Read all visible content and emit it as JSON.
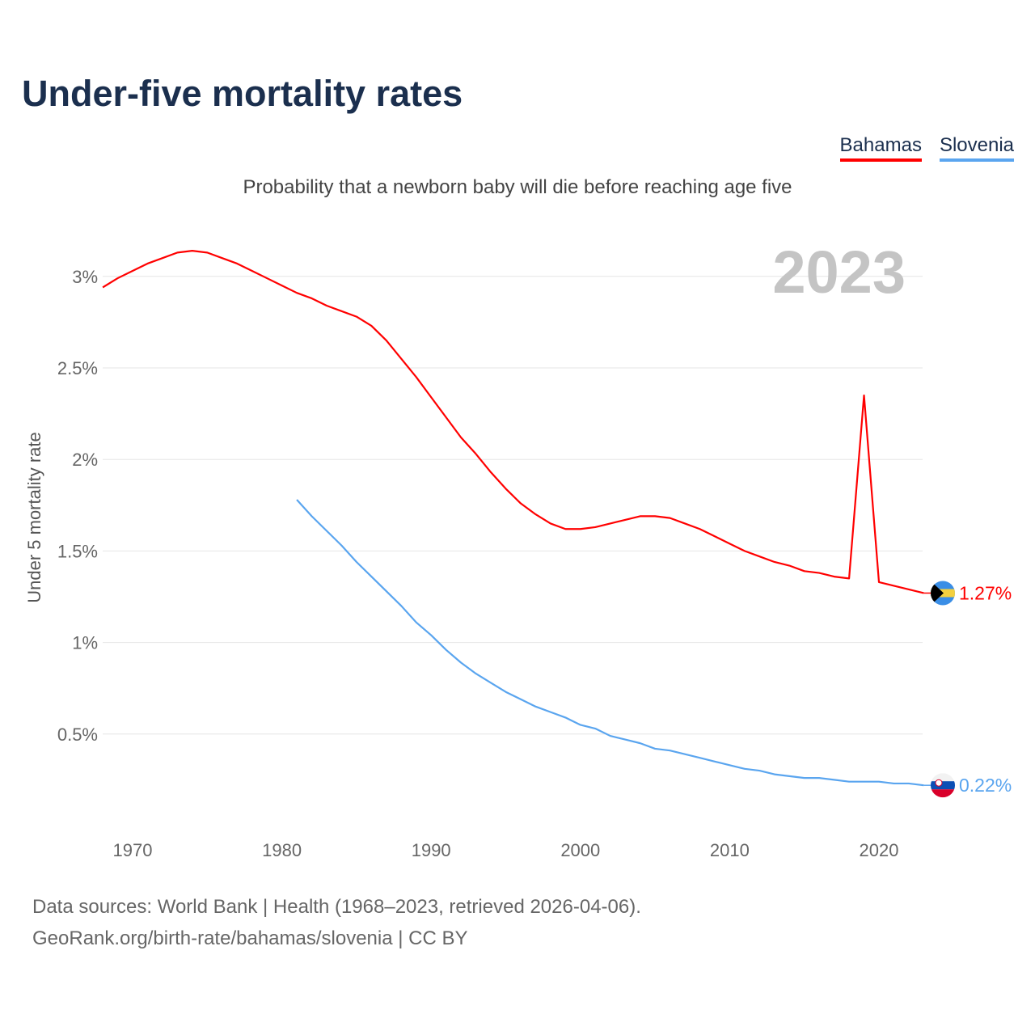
{
  "title": "Under-five mortality rates",
  "subtitle": "Probability that a newborn baby will die before reaching age five",
  "year_label": "2023",
  "sources": [
    "Data sources: World Bank | Health (1968–2023, retrieved 2026-04-06).",
    "GeoRank.org/birth-rate/bahamas/slovenia | CC BY"
  ],
  "chart_data": {
    "type": "line",
    "title": "Under-five mortality rates",
    "ylabel": "Under 5 mortality rate",
    "xlabel": "",
    "xlim": [
      1968,
      2023
    ],
    "ylim": [
      0,
      3.3
    ],
    "grid": true,
    "legend": "top-right",
    "xticks": [
      1970,
      1980,
      1990,
      2000,
      2010,
      2020
    ],
    "xtick_labels": [
      "1970",
      "1980",
      "1990",
      "2000",
      "2010",
      "2020"
    ],
    "yticks": [
      0.5,
      1,
      1.5,
      2,
      2.5,
      3
    ],
    "ytick_labels": [
      "0.5%",
      "1%",
      "1.5%",
      "2%",
      "2.5%",
      "3%"
    ],
    "series": [
      {
        "name": "Bahamas",
        "color": "#ff0000",
        "end_label": "1.27%",
        "start": 1968,
        "values": [
          2.94,
          2.99,
          3.03,
          3.07,
          3.1,
          3.13,
          3.14,
          3.13,
          3.1,
          3.07,
          3.03,
          2.99,
          2.95,
          2.91,
          2.88,
          2.84,
          2.81,
          2.78,
          2.73,
          2.65,
          2.55,
          2.45,
          2.34,
          2.23,
          2.12,
          2.03,
          1.93,
          1.84,
          1.76,
          1.7,
          1.65,
          1.62,
          1.62,
          1.63,
          1.65,
          1.67,
          1.69,
          1.69,
          1.68,
          1.65,
          1.62,
          1.58,
          1.54,
          1.5,
          1.47,
          1.44,
          1.42,
          1.39,
          1.38,
          1.36,
          1.35,
          2.35,
          1.33,
          1.31,
          1.29,
          1.27
        ]
      },
      {
        "name": "Slovenia",
        "color": "#5aa5ef",
        "end_label": "0.22%",
        "start": 1981,
        "values": [
          1.78,
          1.69,
          1.61,
          1.53,
          1.44,
          1.36,
          1.28,
          1.2,
          1.11,
          1.04,
          0.96,
          0.89,
          0.83,
          0.78,
          0.73,
          0.69,
          0.65,
          0.62,
          0.59,
          0.55,
          0.53,
          0.49,
          0.47,
          0.45,
          0.42,
          0.41,
          0.39,
          0.37,
          0.35,
          0.33,
          0.31,
          0.3,
          0.28,
          0.27,
          0.26,
          0.26,
          0.25,
          0.24,
          0.24,
          0.24,
          0.23,
          0.23,
          0.22
        ]
      }
    ]
  }
}
